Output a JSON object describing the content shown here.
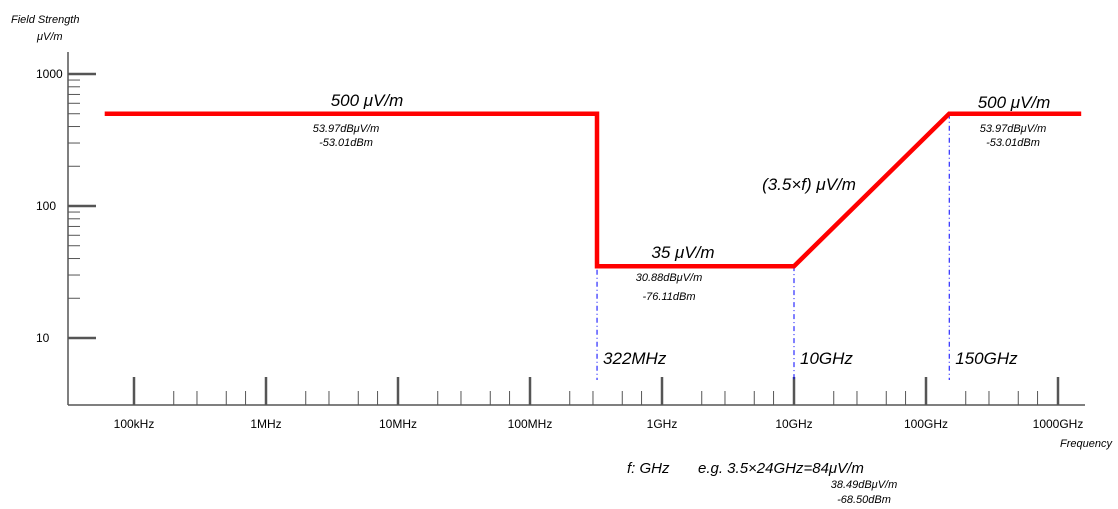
{
  "chart_data": {
    "type": "line",
    "y_title": "Field Strength",
    "y_unit": "μV/m",
    "x_title": "Frequency",
    "y_scale": "log",
    "x_scale": "log",
    "y_ticks": [
      {
        "value": 1000,
        "label": "1000"
      },
      {
        "value": 100,
        "label": "100"
      },
      {
        "value": 10,
        "label": "10"
      }
    ],
    "x_ticks": [
      {
        "value": 100000,
        "label": "100kHz"
      },
      {
        "value": 1000000,
        "label": "1MHz"
      },
      {
        "value": 10000000,
        "label": "10MHz"
      },
      {
        "value": 100000000,
        "label": "100MHz"
      },
      {
        "value": 1000000000,
        "label": "1GHz"
      },
      {
        "value": 10000000000,
        "label": "10GHz"
      },
      {
        "value": 100000000000,
        "label": "100GHz"
      },
      {
        "value": 1000000000000,
        "label": "1000GHz"
      }
    ],
    "series": [
      {
        "color": "#ff0000",
        "points": [
          {
            "x": 60000,
            "y": 500
          },
          {
            "x": 322000000,
            "y": 500
          },
          {
            "x": 322000000,
            "y": 35
          },
          {
            "x": 10000000000,
            "y": 35
          },
          {
            "x": 150000000000,
            "y": 500
          },
          {
            "x": 1500000000000,
            "y": 500
          }
        ]
      }
    ],
    "markers": [
      {
        "x": 322000000,
        "label": "322MHz"
      },
      {
        "x": 10000000000,
        "label": "10GHz"
      },
      {
        "x": 150000000000,
        "label": "150GHz"
      }
    ],
    "annotations": {
      "seg1_label": "500 μV/m",
      "seg1_db": "53.97dBμV/m",
      "seg1_dbm": "-53.01dBm",
      "seg2_label": "35 μV/m",
      "seg2_db": "30.88dBμV/m",
      "seg2_dbm": "-76.11dBm",
      "slope_label": "(3.5×f) μV/m",
      "seg3_label": "500 μV/m",
      "seg3_db": "53.97dBμV/m",
      "seg3_dbm": "-53.01dBm",
      "note_f": "f: GHz",
      "note_eg": "e.g. 3.5×24GHz=84μV/m",
      "note_db": "38.49dBμV/m",
      "note_dbm": "-68.50dBm"
    },
    "colors": {
      "line": "#ff0000",
      "marker": "#0000ff",
      "axis": "#555555"
    }
  }
}
